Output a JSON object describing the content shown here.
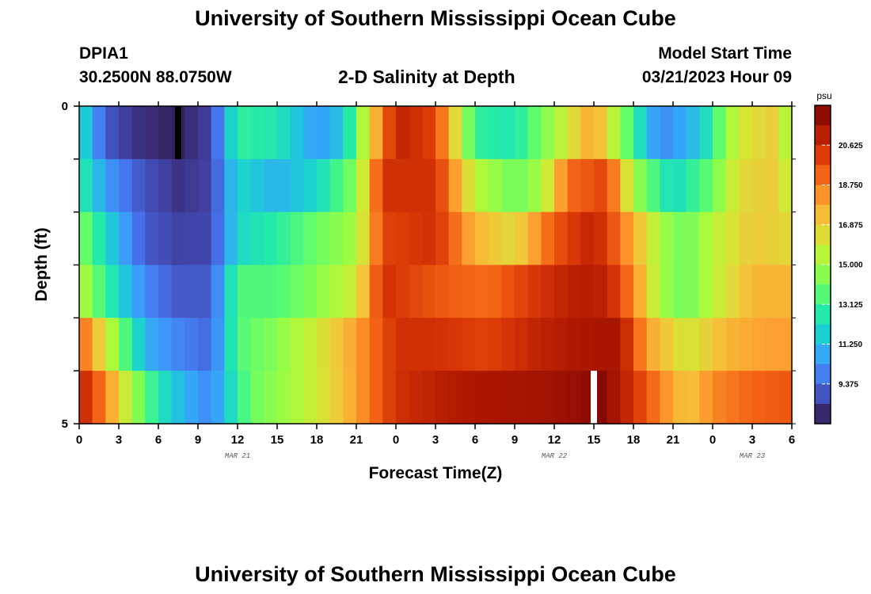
{
  "header": {
    "title": "University of Southern Mississippi Ocean Cube",
    "station_id": "DPIA1",
    "coords": "30.2500N  88.0750W",
    "plot_title": "2-D Salinity at Depth",
    "model_start_label": "Model Start Time",
    "model_start_value": "03/21/2023 Hour 09"
  },
  "footer": {
    "title": "University of Southern Mississippi Ocean Cube"
  },
  "chart_data": {
    "type": "heatmap",
    "title": "2-D Salinity at Depth",
    "xlabel": "Forecast Time(Z)",
    "ylabel": "Depth (ft)",
    "x_tick_labels": [
      "0",
      "3",
      "6",
      "9",
      "12",
      "15",
      "18",
      "21",
      "0",
      "3",
      "6",
      "9",
      "12",
      "15",
      "18",
      "21",
      "0",
      "3",
      "6"
    ],
    "date_labels": [
      {
        "text": "MAR 21",
        "tick_index": 4
      },
      {
        "text": "MAR 22",
        "tick_index": 12
      },
      {
        "text": "MAR 23",
        "tick_index": 17
      }
    ],
    "y_tick_labels": [
      "0",
      "5"
    ],
    "ylim": [
      0,
      5
    ],
    "hours": 54,
    "colorbar": {
      "unit": "psu",
      "min": 7.5,
      "max": 22.5,
      "ticks": [
        "20.625",
        "18.750",
        "16.875",
        "15.000",
        "13.125",
        "11.250",
        "9.375"
      ]
    },
    "depth_layers": [
      {
        "knots": [
          [
            0,
            12.5
          ],
          [
            2,
            9
          ],
          [
            4,
            8.2
          ],
          [
            7.5,
            7.8
          ],
          [
            10,
            8.5
          ],
          [
            12,
            13
          ],
          [
            15,
            12.5
          ],
          [
            18,
            10.5
          ],
          [
            20,
            11.5
          ],
          [
            22,
            16.5
          ],
          [
            24,
            21
          ],
          [
            27,
            20
          ],
          [
            30,
            13
          ],
          [
            33,
            12.5
          ],
          [
            36,
            15
          ],
          [
            39,
            18
          ],
          [
            42,
            13
          ],
          [
            44,
            10
          ],
          [
            47,
            11.5
          ],
          [
            50,
            16
          ],
          [
            53,
            17
          ],
          [
            54,
            14
          ]
        ]
      },
      {
        "knots": [
          [
            0,
            13
          ],
          [
            2,
            10.5
          ],
          [
            5,
            8.8
          ],
          [
            7.5,
            8.2
          ],
          [
            10,
            8.5
          ],
          [
            12,
            12
          ],
          [
            15,
            11
          ],
          [
            18,
            12
          ],
          [
            21,
            14.5
          ],
          [
            23,
            20.5
          ],
          [
            27,
            20.5
          ],
          [
            30,
            15.5
          ],
          [
            33,
            14
          ],
          [
            35,
            15
          ],
          [
            37,
            19
          ],
          [
            40,
            20
          ],
          [
            42,
            15
          ],
          [
            45,
            12
          ],
          [
            48,
            14
          ],
          [
            50,
            16.5
          ],
          [
            53,
            17
          ],
          [
            54,
            15
          ]
        ]
      },
      {
        "knots": [
          [
            0,
            14.5
          ],
          [
            2,
            12
          ],
          [
            5,
            9
          ],
          [
            7.5,
            8.5
          ],
          [
            10,
            8.6
          ],
          [
            12,
            12
          ],
          [
            15,
            12.8
          ],
          [
            18,
            14
          ],
          [
            21,
            15
          ],
          [
            23,
            20
          ],
          [
            27,
            20.5
          ],
          [
            30,
            17.5
          ],
          [
            33,
            16.5
          ],
          [
            36,
            19.5
          ],
          [
            39,
            21
          ],
          [
            41,
            19
          ],
          [
            44,
            15
          ],
          [
            46,
            14
          ],
          [
            48,
            15.5
          ],
          [
            51,
            17
          ],
          [
            54,
            16.5
          ]
        ]
      },
      {
        "knots": [
          [
            0,
            15.5
          ],
          [
            2,
            13
          ],
          [
            5,
            10
          ],
          [
            7.5,
            9
          ],
          [
            10,
            9
          ],
          [
            12,
            13.5
          ],
          [
            15,
            13.5
          ],
          [
            18,
            14.5
          ],
          [
            21,
            16
          ],
          [
            23,
            20.5
          ],
          [
            27,
            19.5
          ],
          [
            31,
            19
          ],
          [
            35,
            20.5
          ],
          [
            38,
            21.2
          ],
          [
            40,
            21
          ],
          [
            42,
            18.5
          ],
          [
            44,
            15
          ],
          [
            46,
            14
          ],
          [
            48,
            15.5
          ],
          [
            51,
            17.5
          ],
          [
            54,
            17.5
          ]
        ]
      },
      {
        "knots": [
          [
            0,
            19.5
          ],
          [
            2,
            16
          ],
          [
            5,
            11
          ],
          [
            7.5,
            10
          ],
          [
            10,
            9.3
          ],
          [
            12,
            13.5
          ],
          [
            15,
            14.5
          ],
          [
            18,
            16
          ],
          [
            21,
            18
          ],
          [
            24,
            20.5
          ],
          [
            27,
            20.5
          ],
          [
            31,
            20
          ],
          [
            35,
            21
          ],
          [
            39,
            21.5
          ],
          [
            41,
            21.5
          ],
          [
            43,
            18
          ],
          [
            46,
            16
          ],
          [
            49,
            17.5
          ],
          [
            52,
            18
          ],
          [
            54,
            18
          ]
        ]
      },
      {
        "knots": [
          [
            0,
            21.2
          ],
          [
            2,
            18.5
          ],
          [
            4,
            15
          ],
          [
            6,
            12.5
          ],
          [
            8,
            11
          ],
          [
            10,
            10
          ],
          [
            11,
            11.5
          ],
          [
            13,
            14
          ],
          [
            16,
            15
          ],
          [
            19,
            16.5
          ],
          [
            21,
            18
          ],
          [
            24,
            20.5
          ],
          [
            28,
            21.2
          ],
          [
            32,
            21.5
          ],
          [
            35,
            21.6
          ],
          [
            37,
            21.8
          ],
          [
            38,
            22
          ],
          [
            39.5,
            22.2
          ],
          [
            41,
            21.3
          ],
          [
            43,
            19.5
          ],
          [
            46,
            17
          ],
          [
            48,
            18.5
          ],
          [
            51,
            19.2
          ],
          [
            54,
            19.5
          ]
        ]
      }
    ],
    "markers": [
      {
        "hour": 7.5,
        "depth_layer": 0,
        "color": "#000000"
      },
      {
        "hour": 39,
        "depth_layer": 5,
        "color": "#ffffff"
      }
    ]
  }
}
